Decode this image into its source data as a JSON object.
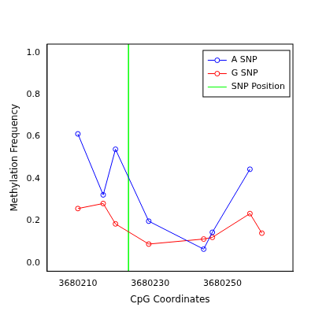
{
  "chart_data": {
    "type": "scatter",
    "x_label": "CpG Coordinates",
    "y_label": "Methylation Frequency",
    "series": [
      {
        "name": "A SNP",
        "color": "#0000ff",
        "marker": "open circle",
        "line_style": "solid",
        "x": [
          3680210,
          3680217,
          3680220.4,
          3680229.6,
          3680244.8,
          3680247.2,
          3680257.6
        ],
        "values": [
          0.613,
          0.323,
          0.54,
          0.198,
          0.065,
          0.145,
          0.445
        ]
      },
      {
        "name": "G SNP",
        "color": "#ff0000",
        "marker": "open circle",
        "line_style": "solid",
        "x": [
          3680210,
          3680217,
          3680220.4,
          3680229.6,
          3680244.8,
          3680247.2,
          3680257.6,
          3680260.9
        ],
        "values": [
          0.258,
          0.282,
          0.185,
          0.089,
          0.113,
          0.121,
          0.234,
          0.141
        ]
      },
      {
        "name": "SNP Position",
        "color": "#00ff00",
        "type": "vline",
        "x": [
          3680224
        ]
      }
    ],
    "xlim": [
      3680201.5,
      3680269.5
    ],
    "xticks": [
      3680210,
      3680230,
      3680250
    ],
    "ylim": [
      -0.04,
      1.04
    ],
    "yticks": [
      {
        "value": 0,
        "label": "0.0"
      },
      {
        "value": 0.2,
        "label": "0.2"
      },
      {
        "value": 0.4,
        "label": "0.4"
      },
      {
        "value": 0.6,
        "label": "0.6"
      },
      {
        "value": 0.8,
        "label": "0.8"
      },
      {
        "value": 1,
        "label": "1.0"
      }
    ],
    "grid": false,
    "legend": "upper right"
  }
}
